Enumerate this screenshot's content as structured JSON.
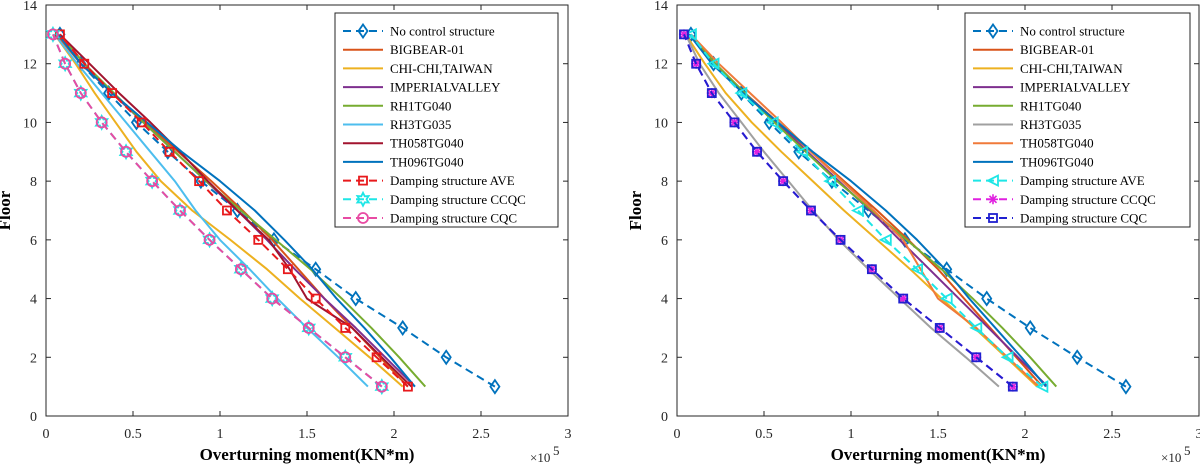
{
  "chart_data": [
    {
      "type": "line",
      "xlabel": "Overturning moment(KN*m)",
      "ylabel": "Floor",
      "xlim": [
        0,
        3
      ],
      "ylim": [
        0,
        14
      ],
      "xticks": [
        "0",
        "0.5",
        "1",
        "1.5",
        "2",
        "2.5",
        "3"
      ],
      "yticks": [
        "0",
        "2",
        "4",
        "6",
        "8",
        "10",
        "12",
        "14"
      ],
      "x_multiplier": "×10",
      "x_multiplier_exp": "5",
      "legend_position": "top-right",
      "series": [
        {
          "name": "No control structure",
          "color": "#0072BD",
          "dash": "dashed",
          "marker": "diamond",
          "x": [
            2.58,
            2.3,
            2.05,
            1.78,
            1.55,
            1.31,
            1.1,
            0.89,
            0.7,
            0.52,
            0.36,
            0.2,
            0.08
          ],
          "y": [
            1,
            2,
            3,
            4,
            5,
            6,
            7,
            8,
            9,
            10,
            11,
            12,
            13
          ]
        },
        {
          "name": "BIGBEAR-01",
          "color": "#D95319",
          "dash": "solid",
          "marker": "none",
          "x": [
            2.08,
            1.92,
            1.76,
            1.6,
            1.45,
            1.3,
            1.13,
            0.95,
            0.76,
            0.57,
            0.38,
            0.2,
            0.06
          ],
          "y": [
            1,
            2,
            3,
            4,
            5,
            6,
            7,
            8,
            9,
            10,
            11,
            12,
            13
          ]
        },
        {
          "name": "CHI-CHI,TAIWAN",
          "color": "#EDB120",
          "dash": "solid",
          "marker": "none",
          "x": [
            2.05,
            1.86,
            1.66,
            1.46,
            1.27,
            1.06,
            0.84,
            0.66,
            0.52,
            0.4,
            0.28,
            0.17,
            0.05
          ],
          "y": [
            1,
            2,
            3,
            4,
            5,
            6,
            7,
            8,
            9,
            10,
            11,
            12,
            13
          ]
        },
        {
          "name": "IMPERIALVALLEY",
          "color": "#7E2F8E",
          "dash": "solid",
          "marker": "none",
          "x": [
            2.12,
            1.95,
            1.78,
            1.6,
            1.43,
            1.27,
            1.1,
            0.92,
            0.74,
            0.56,
            0.38,
            0.22,
            0.08
          ],
          "y": [
            1,
            2,
            3,
            4,
            5,
            6,
            7,
            8,
            9,
            10,
            11,
            12,
            13
          ]
        },
        {
          "name": "RH1TG040",
          "color": "#77AC30",
          "dash": "solid",
          "marker": "none",
          "x": [
            2.18,
            2.03,
            1.87,
            1.7,
            1.52,
            1.32,
            1.12,
            0.92,
            0.74,
            0.56,
            0.39,
            0.22,
            0.08
          ],
          "y": [
            1,
            2,
            3,
            4,
            5,
            6,
            7,
            8,
            9,
            10,
            11,
            12,
            13
          ]
        },
        {
          "name": "RH3TG035",
          "color": "#4DBEEE",
          "dash": "solid",
          "marker": "none",
          "x": [
            1.85,
            1.68,
            1.5,
            1.33,
            1.17,
            1.0,
            0.86,
            0.74,
            0.6,
            0.46,
            0.32,
            0.18,
            0.05
          ],
          "y": [
            1,
            2,
            3,
            4,
            5,
            6,
            7,
            8,
            9,
            10,
            11,
            12,
            13
          ]
        },
        {
          "name": "TH058TG040",
          "color": "#A2142F",
          "dash": "solid",
          "marker": "none",
          "x": [
            2.1,
            1.93,
            1.76,
            1.5,
            1.4,
            1.28,
            1.1,
            0.93,
            0.77,
            0.6,
            0.42,
            0.25,
            0.08
          ],
          "y": [
            1,
            2,
            3,
            4,
            5,
            6,
            7,
            8,
            9,
            10,
            11,
            12,
            13
          ]
        },
        {
          "name": "TH096TG040",
          "color": "#0072BD",
          "dash": "solid",
          "marker": "none",
          "x": [
            2.12,
            1.98,
            1.83,
            1.67,
            1.53,
            1.37,
            1.2,
            1.0,
            0.78,
            0.58,
            0.38,
            0.2,
            0.07
          ],
          "y": [
            1,
            2,
            3,
            4,
            5,
            6,
            7,
            8,
            9,
            10,
            11,
            12,
            13
          ]
        },
        {
          "name": "Damping structure AVE",
          "color": "#E8191C",
          "dash": "dashed",
          "marker": "square",
          "x": [
            2.08,
            1.9,
            1.72,
            1.55,
            1.39,
            1.22,
            1.04,
            0.88,
            0.71,
            0.55,
            0.38,
            0.22,
            0.08
          ],
          "y": [
            1,
            2,
            3,
            4,
            5,
            6,
            7,
            8,
            9,
            10,
            11,
            12,
            13
          ]
        },
        {
          "name": "Damping structure CCQC",
          "color": "#1EE6E6",
          "dash": "dashed",
          "marker": "hexagram",
          "x": [
            1.93,
            1.72,
            1.51,
            1.3,
            1.12,
            0.94,
            0.77,
            0.61,
            0.46,
            0.32,
            0.2,
            0.11,
            0.04
          ],
          "y": [
            1,
            2,
            3,
            4,
            5,
            6,
            7,
            8,
            9,
            10,
            11,
            12,
            13
          ]
        },
        {
          "name": "Damping structure CQC",
          "color": "#E84BA3",
          "dash": "dashed",
          "marker": "circle",
          "x": [
            1.93,
            1.72,
            1.51,
            1.3,
            1.12,
            0.94,
            0.77,
            0.61,
            0.46,
            0.32,
            0.2,
            0.11,
            0.04
          ],
          "y": [
            1,
            2,
            3,
            4,
            5,
            6,
            7,
            8,
            9,
            10,
            11,
            12,
            13
          ]
        }
      ]
    },
    {
      "type": "line",
      "xlabel": "Overturning moment(KN*m)",
      "ylabel": "Floor",
      "xlim": [
        0,
        3
      ],
      "ylim": [
        0,
        14
      ],
      "xticks": [
        "0",
        "0.5",
        "1",
        "1.5",
        "2",
        "2.5",
        "3"
      ],
      "yticks": [
        "0",
        "2",
        "4",
        "6",
        "8",
        "10",
        "12",
        "14"
      ],
      "x_multiplier": "×10",
      "x_multiplier_exp": "5",
      "legend_position": "top-right",
      "series": [
        {
          "name": "No control structure",
          "color": "#0072BD",
          "dash": "dashed",
          "marker": "diamond",
          "x": [
            2.58,
            2.3,
            2.03,
            1.78,
            1.55,
            1.31,
            1.1,
            0.89,
            0.7,
            0.53,
            0.37,
            0.21,
            0.08
          ],
          "y": [
            1,
            2,
            3,
            4,
            5,
            6,
            7,
            8,
            9,
            10,
            11,
            12,
            13
          ]
        },
        {
          "name": "BIGBEAR-01",
          "color": "#D95319",
          "dash": "solid",
          "marker": "none",
          "x": [
            2.1,
            1.95,
            1.8,
            1.65,
            1.5,
            1.33,
            1.15,
            0.96,
            0.77,
            0.58,
            0.39,
            0.21,
            0.07
          ],
          "y": [
            1,
            2,
            3,
            4,
            5,
            6,
            7,
            8,
            9,
            10,
            11,
            12,
            13
          ]
        },
        {
          "name": "CHI-CHI,TAIWAN",
          "color": "#EDB120",
          "dash": "solid",
          "marker": "none",
          "x": [
            2.07,
            1.89,
            1.71,
            1.52,
            1.34,
            1.15,
            0.96,
            0.78,
            0.6,
            0.43,
            0.28,
            0.16,
            0.05
          ],
          "y": [
            1,
            2,
            3,
            4,
            5,
            6,
            7,
            8,
            9,
            10,
            11,
            12,
            13
          ]
        },
        {
          "name": "IMPERIALVALLEY",
          "color": "#7E2F8E",
          "dash": "solid",
          "marker": "none",
          "x": [
            2.13,
            1.96,
            1.79,
            1.62,
            1.45,
            1.28,
            1.11,
            0.93,
            0.75,
            0.57,
            0.39,
            0.22,
            0.08
          ],
          "y": [
            1,
            2,
            3,
            4,
            5,
            6,
            7,
            8,
            9,
            10,
            11,
            12,
            13
          ]
        },
        {
          "name": "RH1TG040",
          "color": "#77AC30",
          "dash": "solid",
          "marker": "none",
          "x": [
            2.18,
            2.03,
            1.87,
            1.7,
            1.52,
            1.32,
            1.12,
            0.92,
            0.74,
            0.56,
            0.39,
            0.22,
            0.08
          ],
          "y": [
            1,
            2,
            3,
            4,
            5,
            6,
            7,
            8,
            9,
            10,
            11,
            12,
            13
          ]
        },
        {
          "name": "RH3TG035",
          "color": "#A0A0A0",
          "dash": "solid",
          "marker": "none",
          "x": [
            1.85,
            1.66,
            1.46,
            1.28,
            1.1,
            0.93,
            0.78,
            0.64,
            0.5,
            0.37,
            0.24,
            0.13,
            0.05
          ],
          "y": [
            1,
            2,
            3,
            4,
            5,
            6,
            7,
            8,
            9,
            10,
            11,
            12,
            13
          ]
        },
        {
          "name": "TH058TG040",
          "color": "#F07A3A",
          "dash": "solid",
          "marker": "none",
          "x": [
            2.08,
            1.9,
            1.72,
            1.5,
            1.4,
            1.3,
            1.13,
            0.95,
            0.77,
            0.6,
            0.42,
            0.24,
            0.08
          ],
          "y": [
            1,
            2,
            3,
            4,
            5,
            6,
            7,
            8,
            9,
            10,
            11,
            12,
            13
          ]
        },
        {
          "name": "TH096TG040",
          "color": "#0072BD",
          "dash": "solid",
          "marker": "none",
          "x": [
            2.12,
            1.98,
            1.83,
            1.68,
            1.54,
            1.38,
            1.2,
            1.0,
            0.78,
            0.58,
            0.38,
            0.2,
            0.07
          ],
          "y": [
            1,
            2,
            3,
            4,
            5,
            6,
            7,
            8,
            9,
            10,
            11,
            12,
            13
          ]
        },
        {
          "name": "Damping structure AVE",
          "color": "#1EE6E6",
          "dash": "dashed",
          "marker": "triangle-left",
          "x": [
            2.1,
            1.9,
            1.72,
            1.55,
            1.38,
            1.2,
            1.04,
            0.88,
            0.72,
            0.55,
            0.37,
            0.21,
            0.08
          ],
          "y": [
            1,
            2,
            3,
            4,
            5,
            6,
            7,
            8,
            9,
            10,
            11,
            12,
            13
          ]
        },
        {
          "name": "Damping structure CCQC",
          "color": "#E020E0",
          "dash": "dashed",
          "marker": "asterisk",
          "x": [
            1.93,
            1.72,
            1.51,
            1.3,
            1.12,
            0.94,
            0.77,
            0.61,
            0.46,
            0.33,
            0.2,
            0.11,
            0.04
          ],
          "y": [
            1,
            2,
            3,
            4,
            5,
            6,
            7,
            8,
            9,
            10,
            11,
            12,
            13
          ]
        },
        {
          "name": "Damping structure CQC",
          "color": "#2020D0",
          "dash": "dashed",
          "marker": "square",
          "x": [
            1.93,
            1.72,
            1.51,
            1.3,
            1.12,
            0.94,
            0.77,
            0.61,
            0.46,
            0.33,
            0.2,
            0.11,
            0.04
          ],
          "y": [
            1,
            2,
            3,
            4,
            5,
            6,
            7,
            8,
            9,
            10,
            11,
            12,
            13
          ]
        }
      ]
    }
  ]
}
